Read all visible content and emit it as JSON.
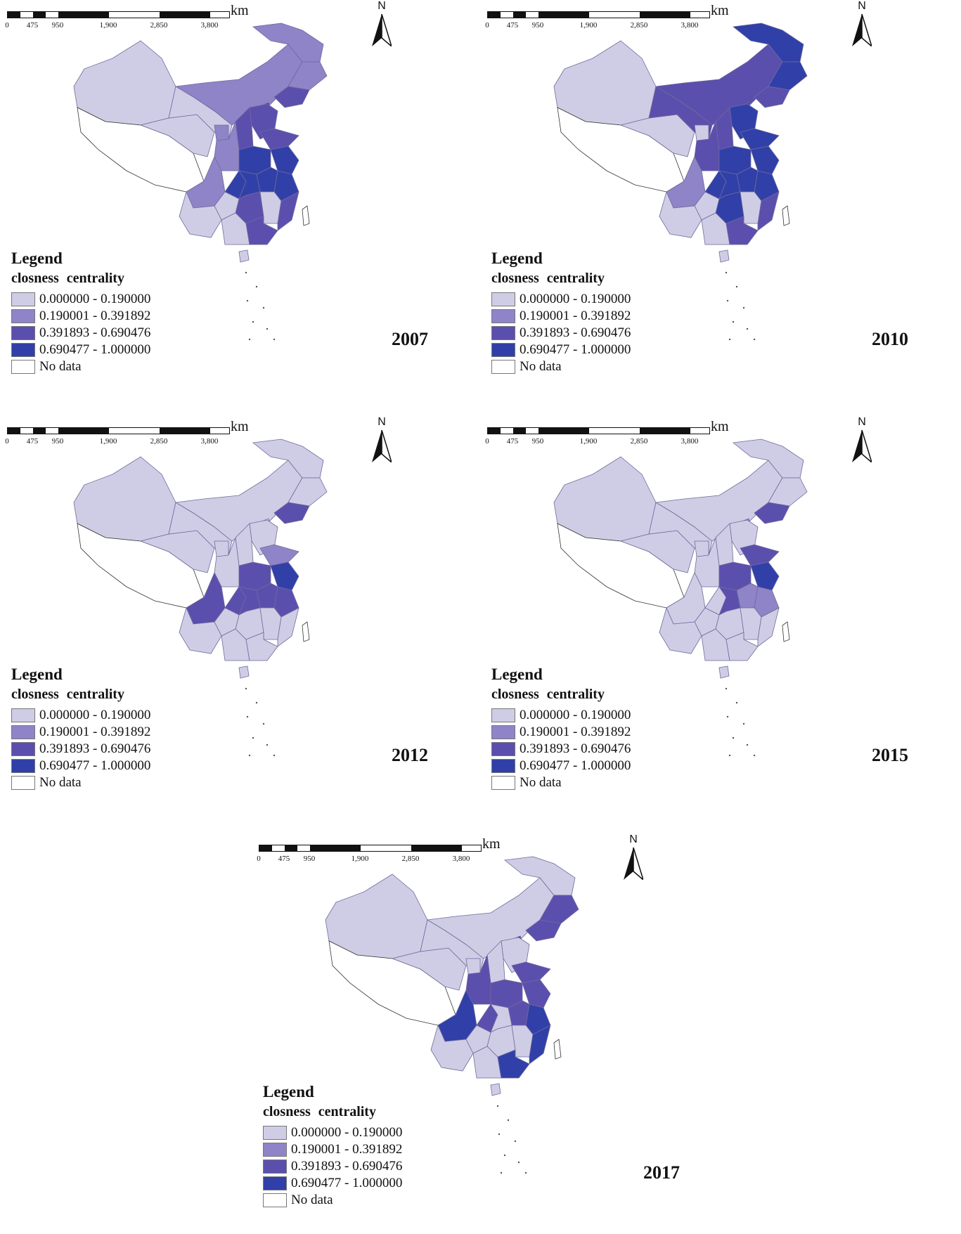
{
  "legend": {
    "title": "Legend",
    "subtitle": "closness  centrality",
    "classes": [
      {
        "label": "0.000000 - 0.190000",
        "color": "#cfcde6"
      },
      {
        "label": "0.190001 - 0.391892",
        "color": "#8f84c8"
      },
      {
        "label": "0.391893 - 0.690476",
        "color": "#5b4fae"
      },
      {
        "label": "0.690477 - 1.000000",
        "color": "#3040a8"
      },
      {
        "label": "No data",
        "color": "#ffffff"
      }
    ]
  },
  "scale_bar": {
    "unit": "km",
    "ticks": [
      "0",
      "475",
      "950",
      "1,900",
      "2,850",
      "3,800"
    ]
  },
  "north_arrow": {
    "letter": "N",
    "icon": "north-arrow-icon"
  },
  "panels": [
    {
      "year": "2007",
      "fills": {
        "xinjiang": 0,
        "tibet": 4,
        "qinghai": 0,
        "gansu": 0,
        "inner_mongolia": 1,
        "heilongjiang": 1,
        "jilin": 1,
        "liaoning": 2,
        "beijing": 3,
        "hebei": 2,
        "shanxi": 2,
        "shaanxi": 1,
        "ningxia": 1,
        "sichuan": 1,
        "chongqing": 3,
        "henan": 3,
        "shandong": 2,
        "jiangsu": 3,
        "anhui": 3,
        "zhejiang": 3,
        "hubei": 3,
        "hunan": 2,
        "jiangxi": 0,
        "fujian": 2,
        "guangdong": 2,
        "guangxi": 0,
        "yunnan": 0,
        "guizhou": 0,
        "hainan": 0,
        "taiwan": 4
      }
    },
    {
      "year": "2010",
      "fills": {
        "xinjiang": 0,
        "tibet": 4,
        "qinghai": 0,
        "gansu": 2,
        "inner_mongolia": 2,
        "heilongjiang": 3,
        "jilin": 3,
        "liaoning": 2,
        "beijing": 3,
        "hebei": 3,
        "shanxi": 2,
        "shaanxi": 2,
        "ningxia": 0,
        "sichuan": 1,
        "chongqing": 3,
        "henan": 3,
        "shandong": 3,
        "jiangsu": 3,
        "anhui": 3,
        "zhejiang": 3,
        "hubei": 3,
        "hunan": 3,
        "jiangxi": 0,
        "fujian": 2,
        "guangdong": 2,
        "guangxi": 0,
        "yunnan": 0,
        "guizhou": 0,
        "hainan": 0,
        "taiwan": 4
      }
    },
    {
      "year": "2012",
      "fills": {
        "xinjiang": 0,
        "tibet": 4,
        "qinghai": 0,
        "gansu": 0,
        "inner_mongolia": 0,
        "heilongjiang": 0,
        "jilin": 0,
        "liaoning": 2,
        "beijing": 0,
        "hebei": 0,
        "shanxi": 0,
        "shaanxi": 0,
        "ningxia": 0,
        "sichuan": 2,
        "chongqing": 2,
        "henan": 2,
        "shandong": 1,
        "jiangsu": 3,
        "anhui": 2,
        "zhejiang": 2,
        "hubei": 2,
        "hunan": 0,
        "jiangxi": 0,
        "fujian": 0,
        "guangdong": 0,
        "guangxi": 0,
        "yunnan": 0,
        "guizhou": 0,
        "hainan": 0,
        "taiwan": 4
      }
    },
    {
      "year": "2015",
      "fills": {
        "xinjiang": 0,
        "tibet": 4,
        "qinghai": 0,
        "gansu": 0,
        "inner_mongolia": 0,
        "heilongjiang": 0,
        "jilin": 0,
        "liaoning": 2,
        "beijing": 1,
        "hebei": 0,
        "shanxi": 0,
        "shaanxi": 0,
        "ningxia": 0,
        "sichuan": 0,
        "chongqing": 0,
        "henan": 2,
        "shandong": 2,
        "jiangsu": 3,
        "anhui": 1,
        "zhejiang": 1,
        "hubei": 2,
        "hunan": 0,
        "jiangxi": 0,
        "fujian": 0,
        "guangdong": 0,
        "guangxi": 0,
        "yunnan": 0,
        "guizhou": 0,
        "hainan": 0,
        "taiwan": 4
      }
    },
    {
      "year": "2017",
      "fills": {
        "xinjiang": 0,
        "tibet": 4,
        "qinghai": 0,
        "gansu": 0,
        "inner_mongolia": 0,
        "heilongjiang": 0,
        "jilin": 2,
        "liaoning": 2,
        "beijing": 3,
        "hebei": 0,
        "shanxi": 0,
        "shaanxi": 2,
        "ningxia": 0,
        "sichuan": 3,
        "chongqing": 2,
        "henan": 2,
        "shandong": 2,
        "jiangsu": 2,
        "anhui": 2,
        "zhejiang": 3,
        "hubei": 0,
        "hunan": 0,
        "jiangxi": 0,
        "fujian": 3,
        "guangdong": 3,
        "guangxi": 0,
        "yunnan": 0,
        "guizhou": 0,
        "hainan": 0,
        "taiwan": 4
      }
    }
  ]
}
